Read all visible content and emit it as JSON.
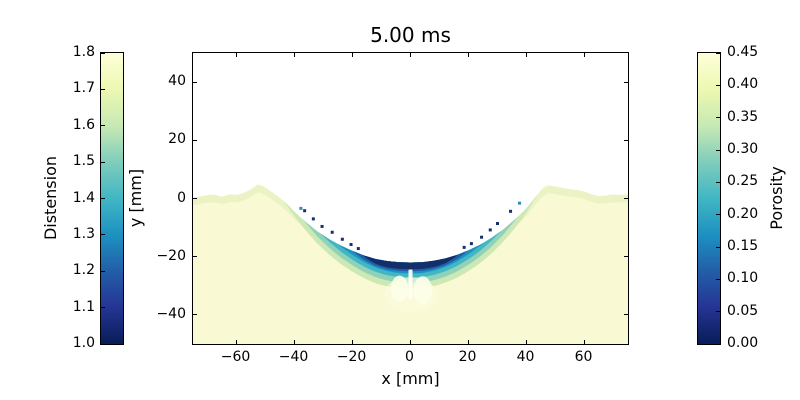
{
  "title": "5.00 ms",
  "axes": {
    "xlabel": "x [mm]",
    "ylabel": "y [mm]",
    "x_tick_values": [
      -60,
      -40,
      -20,
      0,
      20,
      40,
      60
    ],
    "x_tick_labels": [
      "−60",
      "−40",
      "−20",
      "0",
      "20",
      "40",
      "60"
    ],
    "y_tick_values": [
      40,
      20,
      0,
      -20,
      -40
    ],
    "y_tick_labels": [
      "40",
      "20",
      "0",
      "−20",
      "−40"
    ]
  },
  "colorbar_left": {
    "label": "Distension",
    "min": 1.0,
    "max": 1.8,
    "tick_labels_top_to_bottom": [
      "1.8",
      "1.7",
      "1.6",
      "1.5",
      "1.4",
      "1.3",
      "1.2",
      "1.1",
      "1.0"
    ]
  },
  "colorbar_right": {
    "label": "Porosity",
    "min": 0.0,
    "max": 0.45,
    "tick_labels_top_to_bottom": [
      "0.45",
      "0.40",
      "0.35",
      "0.30",
      "0.25",
      "0.20",
      "0.15",
      "0.10",
      "0.05",
      "0.00"
    ]
  },
  "colormap": {
    "name": "YlGnBu_r",
    "stops_bottom_to_top": [
      "#081d58",
      "#253494",
      "#225ea8",
      "#1d91c0",
      "#41b6c4",
      "#7fcdbb",
      "#c7e9b4",
      "#edf8b1",
      "#ffffd9"
    ]
  },
  "chart_data": {
    "type": "heatmap",
    "title": "5.00 ms",
    "xlabel": "x [mm]",
    "ylabel": "y [mm]",
    "xlim": [
      -75,
      75
    ],
    "ylim": [
      -50,
      50
    ],
    "grid": false,
    "colormap": "YlGnBu_r",
    "fields": [
      {
        "name": "Distension",
        "colorbar_side": "left",
        "range": [
          1.0,
          1.8
        ]
      },
      {
        "name": "Porosity",
        "colorbar_side": "right",
        "range": [
          0.0,
          0.45
        ]
      }
    ],
    "background_material_color": "#f9fad4",
    "vacuum_color": "#ffffff",
    "crater": {
      "floor_depth_mm": -22.0,
      "floor_half_width_mm": 8,
      "rim_peaks_x_mm": [
        -52,
        47
      ],
      "rim_height_mm": 4.8
    },
    "surface_profile_mm": [
      [
        -75,
        0.3
      ],
      [
        -71,
        1.0
      ],
      [
        -68,
        1.4
      ],
      [
        -65,
        0.6
      ],
      [
        -62,
        1.5
      ],
      [
        -59,
        1.1
      ],
      [
        -57,
        2.2
      ],
      [
        -55,
        3.2
      ],
      [
        -53,
        4.8
      ],
      [
        -51,
        4.5
      ],
      [
        -49,
        3.0
      ],
      [
        -46,
        1.0
      ],
      [
        -43,
        -1.5
      ],
      [
        -40,
        -4.6
      ],
      [
        -36,
        -8.2
      ],
      [
        -32,
        -11.4
      ],
      [
        -28,
        -14.0
      ],
      [
        -24,
        -16.2
      ],
      [
        -20,
        -18.0
      ],
      [
        -16,
        -19.6
      ],
      [
        -12,
        -20.8
      ],
      [
        -8,
        -21.5
      ],
      [
        -4,
        -21.9
      ],
      [
        0,
        -22.0
      ],
      [
        4,
        -21.9
      ],
      [
        8,
        -21.4
      ],
      [
        12,
        -20.6
      ],
      [
        16,
        -19.4
      ],
      [
        20,
        -17.8
      ],
      [
        24,
        -15.9
      ],
      [
        28,
        -13.5
      ],
      [
        32,
        -10.6
      ],
      [
        36,
        -7.2
      ],
      [
        40,
        -3.4
      ],
      [
        43,
        0.4
      ],
      [
        45,
        2.8
      ],
      [
        46,
        4.3
      ],
      [
        48,
        4.5
      ],
      [
        50,
        4.1
      ],
      [
        53,
        3.5
      ],
      [
        56,
        3.1
      ],
      [
        60,
        2.4
      ],
      [
        63,
        1.2
      ],
      [
        66,
        0.6
      ],
      [
        69,
        1.4
      ],
      [
        72,
        1.2
      ],
      [
        75,
        1.4
      ]
    ],
    "compaction_layers": [
      {
        "color": "#ebf3c4",
        "extent_mm": 75,
        "max_depth_mm": 2.6,
        "profile_power": 0
      },
      {
        "color": "#cde8b4",
        "extent_mm": 44,
        "max_depth_mm": 9.0,
        "profile_power": 2
      },
      {
        "color": "#8fd2b9",
        "extent_mm": 37,
        "max_depth_mm": 7.0,
        "profile_power": 2
      },
      {
        "color": "#41b6c4",
        "extent_mm": 31,
        "max_depth_mm": 5.2,
        "profile_power": 2
      },
      {
        "color": "#1d91c0",
        "extent_mm": 25,
        "max_depth_mm": 3.8,
        "profile_power": 2
      },
      {
        "color": "#225ea8",
        "extent_mm": 20,
        "max_depth_mm": 3.0,
        "profile_power": 3
      },
      {
        "color": "#122f6b",
        "extent_mm": 16.5,
        "max_depth_mm": 2.3,
        "profile_power": 4
      }
    ],
    "speck_colors": [
      "#16306e",
      "#2f8bbd"
    ],
    "dark_specks_mm": [
      [
        -37.8,
        -3.4,
        1
      ],
      [
        -36.5,
        -4.2,
        0
      ],
      [
        -33.5,
        -7.0,
        0
      ],
      [
        -30.5,
        -9.6,
        0
      ],
      [
        -27.0,
        -11.6,
        0
      ],
      [
        -23.5,
        -14.0,
        0
      ],
      [
        -20.5,
        -15.8,
        0
      ],
      [
        -18.0,
        -17.2,
        0
      ],
      [
        37.6,
        -1.6,
        1
      ],
      [
        34.5,
        -4.4,
        0
      ],
      [
        30.0,
        -8.6,
        0
      ],
      [
        27.5,
        -10.8,
        0
      ],
      [
        24.5,
        -13.3,
        0
      ],
      [
        21.0,
        -15.5,
        0
      ],
      [
        18.5,
        -16.8,
        0
      ]
    ],
    "subsurface_plume_mm": [
      {
        "cx": 0,
        "cy": -33,
        "rx": 9.0,
        "ry": 6.0,
        "color": "#fbfcdf",
        "opacity": 0.6
      },
      {
        "cx": -3.8,
        "cy": -31,
        "rx": 3.0,
        "ry": 4.5,
        "color": "#fdfee8",
        "opacity": 0.9
      },
      {
        "cx": 4.2,
        "cy": -31.5,
        "rx": 3.2,
        "ry": 4.8,
        "color": "#fdfee8",
        "opacity": 0.9
      }
    ],
    "central_jet_streak_mm": {
      "x": 0,
      "half_width": 0.7,
      "y_top": -24.4,
      "y_bottom": -34.5,
      "color": "#fffef2",
      "opacity": 0.95
    }
  }
}
